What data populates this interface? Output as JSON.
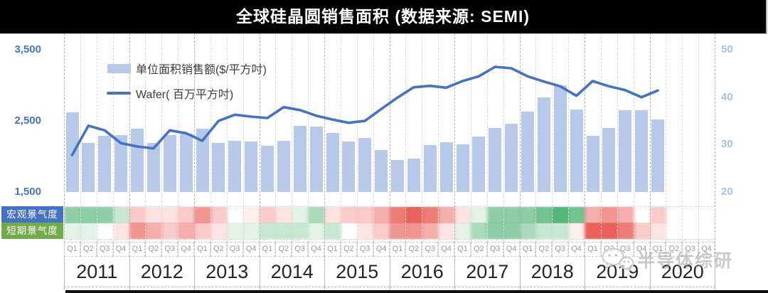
{
  "title": "全球硅晶圆销售面积 (数据来源: SEMI)",
  "legend": {
    "bar_label": "单位面积销售额($/平方吋)",
    "line_label": "Wafer( 百万平方吋)"
  },
  "axes": {
    "left_ticks": [
      "3,500",
      "2,500",
      "1,500"
    ],
    "right_ticks": [
      "50",
      "40",
      "30",
      "20"
    ],
    "left_range": [
      1500,
      3500
    ],
    "right_range": [
      20,
      50
    ]
  },
  "x_axis": {
    "quarters": [
      "Q1",
      "Q2",
      "Q3",
      "Q4"
    ],
    "years": [
      "2011",
      "2012",
      "2013",
      "2014",
      "2015",
      "2016",
      "2017",
      "2018",
      "2019",
      "2020"
    ]
  },
  "sentiment_rows": [
    {
      "label": "宏观景气度",
      "label_bg": "#4472c4",
      "values": [
        2,
        2,
        2,
        1,
        -1,
        -0.5,
        -0.5,
        -1,
        -2,
        -1,
        0,
        -0.3,
        -1,
        -0.5,
        0.5,
        1.5,
        -0.5,
        -1,
        -1,
        -1.5,
        -2.5,
        -3,
        -2.5,
        -1.5,
        -0.5,
        0.5,
        2,
        2,
        2,
        2.5,
        3,
        2.5,
        -1.5,
        -2,
        -1.5,
        0,
        -1,
        null,
        null,
        null
      ]
    },
    {
      "label": "短期景气度",
      "label_bg": "#70ad47",
      "values": [
        0.5,
        0.5,
        0,
        -0.5,
        -2,
        -1.5,
        -1,
        -1.5,
        -1,
        -0.5,
        0.5,
        0.5,
        1,
        1,
        1,
        0.5,
        1,
        0,
        -0.5,
        -1,
        -2,
        -2,
        -1.5,
        -0.5,
        0.5,
        1.5,
        2,
        2,
        1.5,
        1,
        1,
        -0.3,
        -3,
        -3,
        -2.5,
        -1,
        -0.5,
        null,
        null,
        null
      ]
    }
  ],
  "watermark": "半导体综研",
  "colors": {
    "bar": "#b7c9e8",
    "line": "#4472c4",
    "heat_positive": "86,182,120",
    "heat_negative": "236,96,90",
    "macro_label_bg": "#4472c4",
    "short_label_bg": "#70ad47"
  },
  "chart_data": {
    "type": "bar+line",
    "title": "全球硅晶圆销售面积 (数据来源: SEMI)",
    "categories": [
      "2011Q1",
      "2011Q2",
      "2011Q3",
      "2011Q4",
      "2012Q1",
      "2012Q2",
      "2012Q3",
      "2012Q4",
      "2013Q1",
      "2013Q2",
      "2013Q3",
      "2013Q4",
      "2014Q1",
      "2014Q2",
      "2014Q3",
      "2014Q4",
      "2015Q1",
      "2015Q2",
      "2015Q3",
      "2015Q4",
      "2016Q1",
      "2016Q2",
      "2016Q3",
      "2016Q4",
      "2017Q1",
      "2017Q2",
      "2017Q3",
      "2017Q4",
      "2018Q1",
      "2018Q2",
      "2018Q3",
      "2018Q4",
      "2019Q1",
      "2019Q2",
      "2019Q3",
      "2019Q4",
      "2020Q1"
    ],
    "series": [
      {
        "name": "单位面积销售额($/平方吋)",
        "type": "bar",
        "axis": "left",
        "ylim": [
          1500,
          3500
        ],
        "values": [
          2620,
          2190,
          2290,
          2300,
          2390,
          2190,
          2300,
          2320,
          2390,
          2190,
          2220,
          2210,
          2150,
          2220,
          2430,
          2420,
          2330,
          2210,
          2260,
          2090,
          1950,
          1970,
          2160,
          2200,
          2170,
          2280,
          2400,
          2460,
          2630,
          2830,
          3000,
          2660,
          2290,
          2400,
          2650,
          2650,
          2520
        ]
      },
      {
        "name": "Wafer( 百万平方吋)",
        "type": "line",
        "axis": "right",
        "ylim": [
          20,
          50
        ],
        "values": [
          27.8,
          34,
          33,
          30.3,
          29.6,
          29.2,
          33,
          32.4,
          30.8,
          35,
          36.3,
          35.9,
          35.6,
          37.9,
          37.3,
          36.1,
          35.3,
          34.6,
          35,
          37.5,
          39.9,
          42.1,
          42.4,
          42,
          43.4,
          44.4,
          46.4,
          46.1,
          44.4,
          43.3,
          42.3,
          40.3,
          43.4,
          42.3,
          41.5,
          40,
          41.4
        ]
      }
    ],
    "grid": "dashed vertical per quarter",
    "legend_position": "top-left inside plot"
  }
}
